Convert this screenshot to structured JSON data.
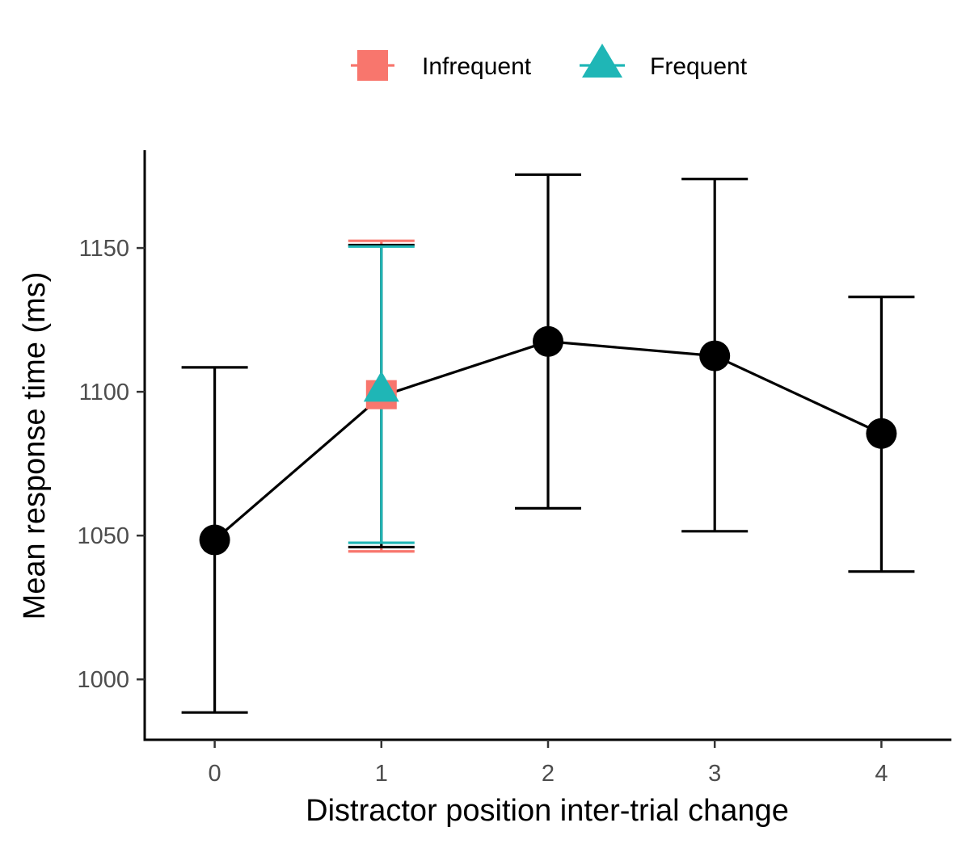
{
  "chart_data": {
    "type": "scatter",
    "xlabel": "Distractor position inter-trial change",
    "ylabel": "Mean response time (ms)",
    "x_ticks": [
      "0",
      "1",
      "2",
      "3",
      "4"
    ],
    "y_ticks": [
      "1000",
      "1050",
      "1100",
      "1150"
    ],
    "xlim": [
      -0.42,
      4.42
    ],
    "ylim": [
      979,
      1184
    ],
    "grid": false,
    "legend_position": "top",
    "overall": {
      "x": [
        0,
        1,
        2,
        3,
        4
      ],
      "y": [
        1048.5,
        1098.5,
        1117.5,
        1112.5,
        1085.5
      ],
      "err_low": [
        988.5,
        1046,
        1059.5,
        1051.5,
        1037.5
      ],
      "err_high": [
        1108.5,
        1151,
        1175.5,
        1174,
        1133
      ],
      "color": "#000000"
    },
    "series": [
      {
        "name": "Infrequent",
        "marker": "square",
        "color": "#F8766D",
        "x": [
          1
        ],
        "y": [
          1099
        ],
        "err_low": [
          1044.5
        ],
        "err_high": [
          1152.5
        ]
      },
      {
        "name": "Frequent",
        "marker": "triangle",
        "color": "#1FB6B6",
        "x": [
          1
        ],
        "y": [
          1100.5
        ],
        "err_low": [
          1047.5
        ],
        "err_high": [
          1150.5
        ]
      }
    ]
  }
}
